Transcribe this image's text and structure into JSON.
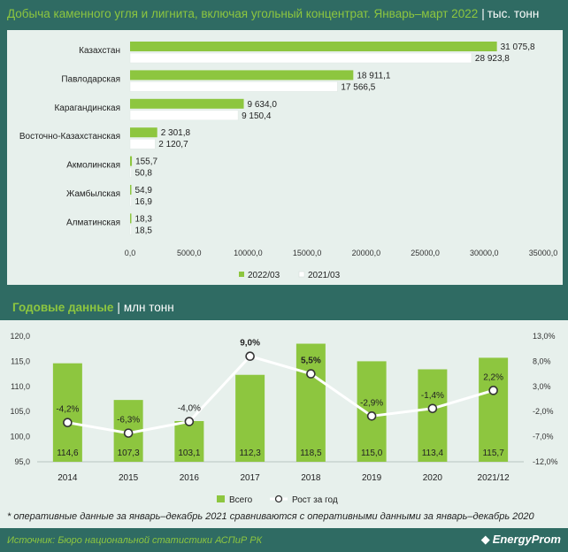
{
  "header": {
    "title": "Добыча каменного угля и лигнита, включая угольный концентрат. Январь–март 2022",
    "unit": "тыс. тонн"
  },
  "section2": {
    "title": "Годовые данные",
    "unit": "млн тонн"
  },
  "footnote": "* оперативные данные за январь–декабрь 2021 сравниваются с оперативными данными за январь–декабрь 2020",
  "source": "Источник: Бюро национальной статистики АСПиР РК",
  "logo": "EnergyProm",
  "colors": {
    "green": "#8dc63f",
    "white": "#ffffff",
    "band": "#2f6b63",
    "panel": "#e7f0ec"
  },
  "chart_data": [
    {
      "type": "bar",
      "orientation": "horizontal",
      "categories": [
        "Казахстан",
        "Павлодарская",
        "Карагандинская",
        "Восточно-Казахстанская",
        "Акмолинская",
        "Жамбылская",
        "Алматинская"
      ],
      "series": [
        {
          "name": "2022/03",
          "color": "#8dc63f",
          "values": [
            31075.8,
            18911.1,
            9634.0,
            2301.8,
            155.7,
            54.9,
            18.3
          ],
          "labels": [
            "31 075,8",
            "18 911,1",
            "9 634,0",
            "2 301,8",
            "155,7",
            "54,9",
            "18,3"
          ]
        },
        {
          "name": "2021/03",
          "color": "#ffffff",
          "values": [
            28923.8,
            17566.5,
            9150.4,
            2120.7,
            50.8,
            16.9,
            18.5
          ],
          "labels": [
            "28 923,8",
            "17 566,5",
            "9 150,4",
            "2 120,7",
            "50,8",
            "16,9",
            "18,5"
          ]
        }
      ],
      "xlim": [
        0,
        35000
      ],
      "xticks": [
        0,
        5000,
        10000,
        15000,
        20000,
        25000,
        30000,
        35000
      ],
      "xtick_labels": [
        "0,0",
        "5000,0",
        "10000,0",
        "15000,0",
        "20000,0",
        "25000,0",
        "30000,0",
        "35000,0"
      ],
      "legend": "bottom"
    },
    {
      "type": "bar+line",
      "categories": [
        "2014",
        "2015",
        "2016",
        "2017",
        "2018",
        "2019",
        "2020",
        "2021/12"
      ],
      "bars": {
        "name": "Всего",
        "color": "#8dc63f",
        "values": [
          114.6,
          107.3,
          103.1,
          112.3,
          118.5,
          115.0,
          113.4,
          115.7
        ],
        "labels": [
          "114,6",
          "107,3",
          "103,1",
          "112,3",
          "118,5",
          "115,0",
          "113,4",
          "115,7"
        ]
      },
      "line": {
        "name": "Рост за год",
        "color": "#ffffff",
        "values": [
          -4.2,
          -6.3,
          -4.0,
          9.0,
          5.5,
          -2.9,
          -1.4,
          2.2
        ],
        "labels": [
          "-4,2%",
          "-6,3%",
          "-4,0%",
          "9,0%",
          "5,5%",
          "-2,9%",
          "-1,4%",
          "2,2%"
        ]
      },
      "y_left": {
        "range": [
          95,
          120
        ],
        "ticks": [
          95,
          100,
          105,
          110,
          115,
          120
        ],
        "tick_labels": [
          "95,0",
          "100,0",
          "105,0",
          "110,0",
          "115,0",
          "120,0"
        ]
      },
      "y_right": {
        "range": [
          -12,
          13
        ],
        "ticks": [
          -12,
          -7,
          -2,
          3,
          8,
          13
        ],
        "tick_labels": [
          "-12,0%",
          "-7,0%",
          "-2,0%",
          "3,0%",
          "8,0%",
          "13,0%"
        ]
      },
      "legend": "bottom"
    }
  ]
}
